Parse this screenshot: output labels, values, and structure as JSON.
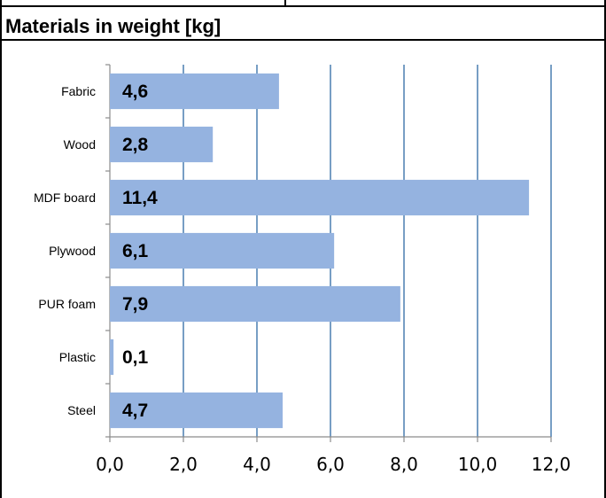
{
  "chart_data": {
    "type": "bar",
    "orientation": "horizontal",
    "title": "Materials in weight [kg]",
    "categories": [
      "Fabric",
      "Wood",
      "MDF board",
      "Plywood",
      "PUR foam",
      "Plastic",
      "Steel"
    ],
    "values": [
      4.6,
      2.8,
      11.4,
      6.1,
      7.9,
      0.1,
      4.7
    ],
    "data_labels": [
      "4,6",
      "2,8",
      "11,4",
      "6,1",
      "7,9",
      "0,1",
      "4,7"
    ],
    "xlim": [
      0,
      12
    ],
    "x_ticks": [
      0,
      2,
      4,
      6,
      8,
      10,
      12
    ],
    "x_tick_labels": [
      "0,0",
      "2,0",
      "4,0",
      "6,0",
      "8,0",
      "10,0",
      "12,0"
    ],
    "grid": "vertical",
    "legend": "none",
    "colors": {
      "bar": "#95b3e0",
      "grid": "#4a7eb0",
      "axis": "#8c8c8c",
      "text": "#000000"
    }
  }
}
